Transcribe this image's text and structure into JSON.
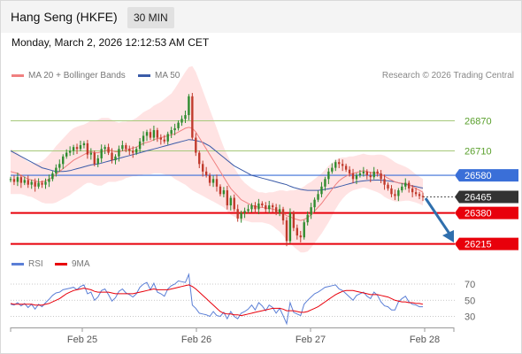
{
  "header": {
    "title": "Hang Seng (HKFE)",
    "timeframe": "30 MIN"
  },
  "timestamp": "Monday, March 2, 2026 12:12:53 AM CET",
  "credit": "Research © 2026 Trading Central",
  "colors": {
    "bb_fill": "#ffdede",
    "ma20": "#f08080",
    "ma50": "#3b5ba8",
    "bull": "#2e8b2e",
    "bear": "#c0392b",
    "resistance": "#a6c97a",
    "support_blue": "#3a6fd8",
    "support_red": "#e8000b",
    "current": "#333333",
    "arrow": "#2f6fad",
    "rsi": "#5b7fd6",
    "rsi_ma": "#e8000b"
  },
  "chart_data": [
    {
      "type": "candlestick",
      "title": "Hang Seng (HKFE)",
      "legend": [
        {
          "name": "MA 20 + Bollinger Bands",
          "color": "#f08080"
        },
        {
          "name": "MA 50",
          "color": "#3b5ba8"
        }
      ],
      "ylim": [
        26140,
        27100
      ],
      "x_ticks": [
        "Feb 25",
        "Feb 26",
        "Feb 27",
        "Feb 28"
      ],
      "levels": [
        {
          "label": "26870",
          "value": 26870,
          "kind": "resistance"
        },
        {
          "label": "26710",
          "value": 26710,
          "kind": "resistance"
        },
        {
          "label": "26580",
          "value": 26580,
          "kind": "support-blue"
        },
        {
          "label": "26465",
          "value": 26465,
          "kind": "current"
        },
        {
          "label": "26380",
          "value": 26380,
          "kind": "support-red"
        },
        {
          "label": "26215",
          "value": 26215,
          "kind": "target"
        }
      ],
      "closes": [
        26560,
        26545,
        26570,
        26540,
        26555,
        26530,
        26545,
        26520,
        26540,
        26530,
        26545,
        26560,
        26590,
        26620,
        26640,
        26680,
        26700,
        26710,
        26730,
        26720,
        26740,
        26750,
        26690,
        26700,
        26640,
        26670,
        26720,
        26730,
        26700,
        26660,
        26680,
        26720,
        26740,
        26720,
        26710,
        26700,
        26720,
        26760,
        26790,
        26810,
        26780,
        26820,
        26780,
        26770,
        26760,
        26800,
        26820,
        26830,
        26860,
        26880,
        26900,
        27000,
        26780,
        26700,
        26640,
        26600,
        26580,
        26540,
        26560,
        26520,
        26480,
        26500,
        26420,
        26460,
        26400,
        26350,
        26380,
        26390,
        26400,
        26420,
        26400,
        26430,
        26420,
        26400,
        26420,
        26410,
        26380,
        26400,
        26340,
        26230,
        26380,
        26300,
        26260,
        26250,
        26330,
        26370,
        26410,
        26450,
        26480,
        26520,
        26560,
        26600,
        26620,
        26650,
        26640,
        26630,
        26610,
        26590,
        26560,
        26580,
        26590,
        26600,
        26580,
        26570,
        26600,
        26590,
        26560,
        26530,
        26510,
        26480,
        26470,
        26500,
        26520,
        26540,
        26510,
        26490,
        26480,
        26470,
        26465
      ],
      "ma20": [
        26600,
        26595,
        26590,
        26580,
        26570,
        26560,
        26555,
        26550,
        26545,
        26545,
        26550,
        26560,
        26570,
        26585,
        26600,
        26615,
        26630,
        26645,
        26660,
        26670,
        26680,
        26690,
        26700,
        26705,
        26700,
        26700,
        26705,
        26710,
        26715,
        26710,
        26705,
        26705,
        26710,
        26715,
        26720,
        26725,
        26730,
        26740,
        26750,
        26755,
        26760,
        26770,
        26775,
        26780,
        26785,
        26790,
        26795,
        26800,
        26810,
        26820,
        26830,
        26835,
        26830,
        26810,
        26780,
        26750,
        26720,
        26690,
        26660,
        26630,
        26600,
        26570,
        26540,
        26510,
        26490,
        26470,
        26450,
        26440,
        26430,
        26420,
        26415,
        26410,
        26410,
        26405,
        26405,
        26400,
        26395,
        26390,
        26380,
        26365,
        26360,
        26350,
        26345,
        26340,
        26345,
        26355,
        26370,
        26390,
        26410,
        26430,
        26455,
        26480,
        26505,
        26530,
        26550,
        26565,
        26575,
        26585,
        26590,
        26595,
        26600,
        26605,
        26600,
        26595,
        26592,
        26590,
        26585,
        26575,
        26565,
        26555,
        26545,
        26540,
        26538,
        26535,
        26530,
        26520,
        26510,
        26500,
        26490
      ],
      "ma50": [
        26710,
        26700,
        26690,
        26680,
        26670,
        26660,
        26650,
        26640,
        26630,
        26620,
        26615,
        26610,
        26605,
        26600,
        26600,
        26600,
        26602,
        26605,
        26610,
        26615,
        26620,
        26625,
        26630,
        26635,
        26638,
        26640,
        26645,
        26650,
        26655,
        26660,
        26665,
        26670,
        26675,
        26680,
        26685,
        26690,
        26695,
        26700,
        26705,
        26710,
        26715,
        26720,
        26725,
        26730,
        26735,
        26740,
        26745,
        26750,
        26755,
        26760,
        26765,
        26770,
        26768,
        26765,
        26760,
        26755,
        26745,
        26735,
        26720,
        26705,
        26690,
        26675,
        26660,
        26645,
        26630,
        26620,
        26610,
        26600,
        26590,
        26580,
        26575,
        26570,
        26565,
        26560,
        26555,
        26550,
        26545,
        26540,
        26535,
        26530,
        26522,
        26515,
        26510,
        26505,
        26502,
        26500,
        26500,
        26500,
        26500,
        26502,
        26505,
        26508,
        26512,
        26515,
        26520,
        26525,
        26530,
        26535,
        26540,
        26545,
        26548,
        26550,
        26552,
        26553,
        26554,
        26555,
        26554,
        26552,
        26550,
        26548,
        26545,
        26540,
        26536,
        26532,
        26528,
        26524,
        26520,
        26516,
        26512
      ],
      "bb_width": [
        120,
        115,
        110,
        100,
        95,
        92,
        90,
        95,
        100,
        110,
        120,
        130,
        140,
        150,
        155,
        160,
        165,
        170,
        170,
        168,
        165,
        160,
        160,
        165,
        170,
        175,
        180,
        175,
        170,
        165,
        160,
        155,
        155,
        150,
        150,
        150,
        155,
        160,
        165,
        170,
        175,
        180,
        185,
        190,
        200,
        210,
        220,
        240,
        260,
        280,
        300,
        320,
        330,
        320,
        300,
        280,
        260,
        240,
        220,
        200,
        180,
        160,
        150,
        140,
        130,
        120,
        110,
        100,
        95,
        90,
        85,
        80,
        80,
        80,
        85,
        90,
        100,
        110,
        120,
        130,
        140,
        150,
        160,
        170,
        175,
        180,
        175,
        170,
        165,
        160,
        155,
        150,
        140,
        130,
        120,
        110,
        100,
        95,
        90,
        90,
        90,
        90,
        90,
        92,
        95,
        100,
        105,
        110,
        110,
        108,
        105,
        100,
        95,
        90,
        85,
        80,
        75,
        72,
        70
      ]
    },
    {
      "type": "line",
      "legend": [
        {
          "name": "RSI",
          "color": "#5b7fd6"
        },
        {
          "name": "9MA",
          "color": "#e8000b"
        }
      ],
      "ylim": [
        20,
        80
      ],
      "y_ticks": [
        {
          "value": 70,
          "label": "70"
        },
        {
          "value": 50,
          "label": "50"
        },
        {
          "value": 30,
          "label": "30"
        }
      ],
      "rsi": [
        45,
        44,
        47,
        43,
        46,
        41,
        45,
        39,
        45,
        42,
        47,
        51,
        56,
        59,
        60,
        63,
        64,
        65,
        66,
        63,
        67,
        69,
        58,
        60,
        50,
        54,
        62,
        64,
        57,
        49,
        53,
        61,
        64,
        59,
        57,
        54,
        58,
        66,
        70,
        72,
        63,
        71,
        60,
        58,
        55,
        64,
        68,
        70,
        74,
        73,
        72,
        82,
        44,
        40,
        34,
        33,
        32,
        30,
        36,
        31,
        30,
        35,
        27,
        36,
        30,
        27,
        34,
        36,
        39,
        44,
        38,
        47,
        43,
        37,
        44,
        41,
        34,
        40,
        31,
        21,
        47,
        35,
        33,
        31,
        45,
        50,
        54,
        58,
        60,
        63,
        66,
        67,
        68,
        69,
        64,
        62,
        58,
        54,
        50,
        56,
        58,
        60,
        55,
        52,
        60,
        56,
        48,
        43,
        42,
        38,
        38,
        48,
        52,
        55,
        48,
        45,
        44,
        42,
        42
      ],
      "ma9": [
        46,
        45,
        45,
        45,
        45,
        45,
        45,
        44,
        44,
        44,
        45,
        46,
        48,
        50,
        52,
        55,
        58,
        60,
        62,
        63,
        64,
        65,
        64,
        63,
        61,
        60,
        60,
        60,
        60,
        59,
        58,
        58,
        58,
        58,
        58,
        58,
        59,
        60,
        61,
        62,
        63,
        64,
        63,
        63,
        63,
        63,
        64,
        65,
        66,
        67,
        68,
        69,
        67,
        64,
        60,
        56,
        52,
        48,
        44,
        40,
        36,
        34,
        33,
        33,
        32,
        32,
        31,
        32,
        33,
        34,
        35,
        36,
        37,
        38,
        39,
        40,
        40,
        40,
        39,
        37,
        37,
        37,
        36,
        35,
        35,
        36,
        38,
        40,
        42,
        45,
        48,
        51,
        54,
        57,
        59,
        61,
        62,
        62,
        62,
        61,
        60,
        59,
        58,
        57,
        57,
        57,
        56,
        55,
        54,
        52,
        50,
        49,
        48,
        48,
        47,
        47,
        46,
        46,
        45
      ]
    }
  ]
}
